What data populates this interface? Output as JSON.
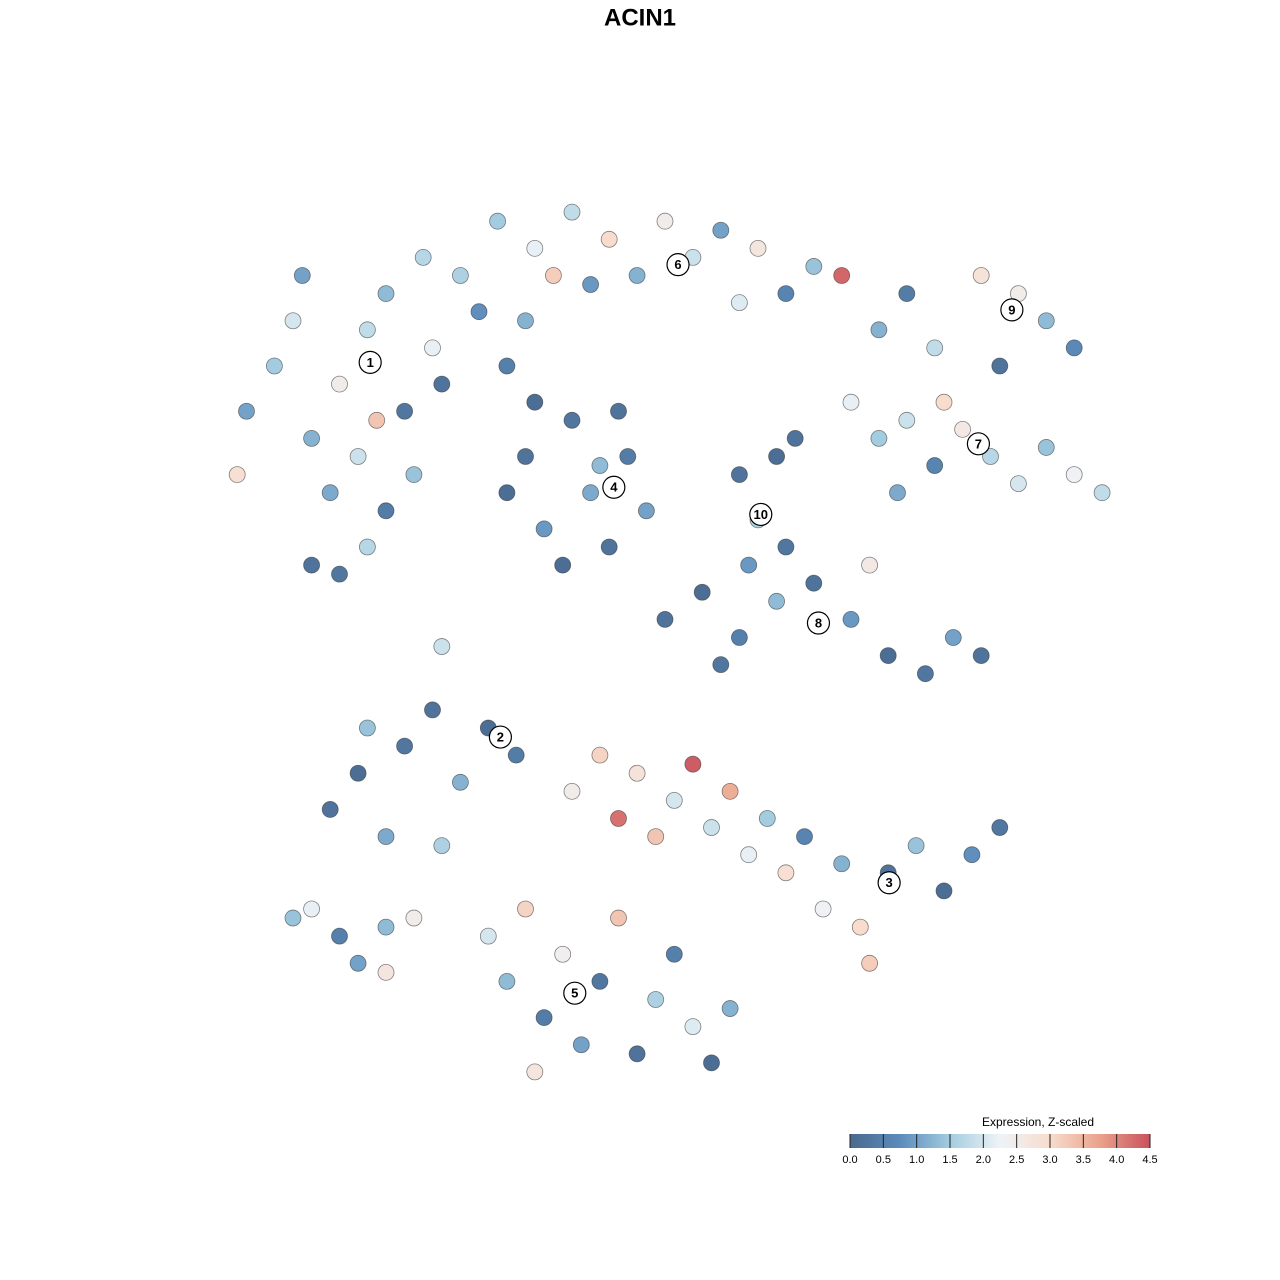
{
  "chart_data": {
    "type": "scatter",
    "title": "ACIN1",
    "xlim": [
      0,
      100
    ],
    "ylim": [
      0,
      100
    ],
    "x": [
      5,
      8,
      10,
      12,
      15,
      18,
      20,
      22,
      25,
      28,
      30,
      14,
      17,
      20,
      23,
      26,
      12,
      15,
      18,
      33,
      35,
      4,
      11,
      24,
      19,
      32,
      36,
      40,
      44,
      47,
      50,
      53,
      56,
      60,
      63,
      66,
      69,
      58,
      42,
      38,
      33,
      35,
      37,
      40,
      42,
      44,
      46,
      48,
      39,
      45,
      36,
      43,
      58,
      60,
      62,
      63,
      59,
      64,
      73,
      76,
      79,
      84,
      88,
      91,
      94,
      86,
      70,
      73,
      76,
      79,
      82,
      85,
      88,
      91,
      94,
      97,
      75,
      80,
      50,
      54,
      58,
      62,
      66,
      70,
      74,
      78,
      81,
      84,
      72,
      56,
      14,
      17,
      20,
      22,
      25,
      28,
      31,
      34,
      18,
      26,
      40,
      43,
      45,
      47,
      49,
      51,
      53,
      55,
      57,
      59,
      61,
      63,
      65,
      67,
      69,
      71,
      74,
      77,
      80,
      83,
      86,
      72,
      31,
      33,
      35,
      37,
      39,
      41,
      43,
      45,
      47,
      49,
      51,
      53,
      55,
      57,
      36,
      10,
      12,
      15,
      17,
      20,
      23,
      20,
      26
    ],
    "y": [
      75,
      80,
      85,
      72,
      78,
      84,
      88,
      75,
      82,
      90,
      86,
      66,
      70,
      64,
      68,
      78,
      58,
      57,
      60,
      80,
      85,
      68,
      90,
      92,
      74,
      96,
      93,
      97,
      94,
      90,
      96,
      92,
      95,
      93,
      88,
      91,
      90,
      87,
      89,
      90,
      66,
      70,
      62,
      74,
      66,
      60,
      70,
      64,
      58,
      75,
      76,
      69,
      68,
      63,
      70,
      60,
      58,
      72,
      84,
      88,
      82,
      90,
      88,
      85,
      82,
      80,
      76,
      72,
      74,
      69,
      73,
      70,
      67,
      71,
      68,
      66,
      66,
      76,
      52,
      55,
      50,
      54,
      56,
      52,
      48,
      46,
      50,
      48,
      58,
      47,
      31,
      35,
      28,
      38,
      42,
      34,
      40,
      37,
      40,
      27,
      33,
      37,
      30,
      35,
      28,
      32,
      36,
      29,
      33,
      26,
      30,
      24,
      28,
      20,
      25,
      18,
      24,
      27,
      22,
      26,
      29,
      14,
      17,
      12,
      20,
      8,
      15,
      5,
      12,
      19,
      4,
      10,
      15,
      7,
      3,
      9,
      2,
      19,
      20,
      17,
      14,
      18,
      19,
      13,
      49
    ],
    "values": [
      1.0,
      1.5,
      2.0,
      1.2,
      2.5,
      1.8,
      1.3,
      0.3,
      2.2,
      1.6,
      0.8,
      1.1,
      1.9,
      0.4,
      1.4,
      0.2,
      0.2,
      0.3,
      1.7,
      0.5,
      1.2,
      2.9,
      1.0,
      1.7,
      3.3,
      1.5,
      2.2,
      1.8,
      3.0,
      1.2,
      2.5,
      1.9,
      1.0,
      2.7,
      0.6,
      1.4,
      4.3,
      2.1,
      0.9,
      3.2,
      0.1,
      0.2,
      0.9,
      0.3,
      1.1,
      0.2,
      0.4,
      1.0,
      0.1,
      0.2,
      0.1,
      1.3,
      0.2,
      1.6,
      0.1,
      0.3,
      0.9,
      0.2,
      1.2,
      0.4,
      1.8,
      2.8,
      2.5,
      1.3,
      0.7,
      0.2,
      2.2,
      1.5,
      1.9,
      0.6,
      2.6,
      1.7,
      2.0,
      1.4,
      2.3,
      1.8,
      1.1,
      3.0,
      0.2,
      0.1,
      0.5,
      1.3,
      0.2,
      0.9,
      0.1,
      0.3,
      1.0,
      0.2,
      2.6,
      0.3,
      0.2,
      0.1,
      1.1,
      0.3,
      0.2,
      1.2,
      0.1,
      0.4,
      1.4,
      1.6,
      2.5,
      3.1,
      4.2,
      2.8,
      3.3,
      2.0,
      4.4,
      1.9,
      3.6,
      2.2,
      1.5,
      2.9,
      0.6,
      2.3,
      1.2,
      3.0,
      0.2,
      1.4,
      0.1,
      0.8,
      0.3,
      3.2,
      2.0,
      1.3,
      3.1,
      0.4,
      2.4,
      1.0,
      0.3,
      3.3,
      0.2,
      1.6,
      0.5,
      2.1,
      0.1,
      1.2,
      2.7,
      1.4,
      2.2,
      0.5,
      1.0,
      1.3,
      2.5,
      2.7,
      1.9
    ],
    "cluster_labels": [
      {
        "text": "1",
        "x": 18.3,
        "y": 80.4
      },
      {
        "text": "2",
        "x": 32.3,
        "y": 39.0
      },
      {
        "text": "3",
        "x": 74.1,
        "y": 22.9
      },
      {
        "text": "4",
        "x": 44.5,
        "y": 66.6
      },
      {
        "text": "5",
        "x": 40.3,
        "y": 10.7
      },
      {
        "text": "6",
        "x": 51.4,
        "y": 91.2
      },
      {
        "text": "7",
        "x": 83.7,
        "y": 71.4
      },
      {
        "text": "8",
        "x": 66.5,
        "y": 51.6
      },
      {
        "text": "9",
        "x": 87.3,
        "y": 86.2
      },
      {
        "text": "10",
        "x": 60.3,
        "y": 63.6
      }
    ],
    "colorbar": {
      "title": "Expression, Z-scaled",
      "clim": [
        0,
        4.5
      ],
      "colors": [
        "#4a6a8f",
        "#5b8bbb",
        "#a3cce0",
        "#eef3f7",
        "#f8dccd",
        "#eaa28b",
        "#c9515e"
      ],
      "ticks": [
        {
          "value": 0,
          "label": "0.0"
        },
        0.5,
        {
          "value": 1,
          "label": "1.0"
        },
        1.5,
        {
          "value": 2,
          "label": "2.0"
        },
        2.5,
        {
          "value": 3,
          "label": "3.0"
        },
        3.5,
        {
          "value": 4,
          "label": "4.0"
        },
        4.5
      ]
    }
  }
}
